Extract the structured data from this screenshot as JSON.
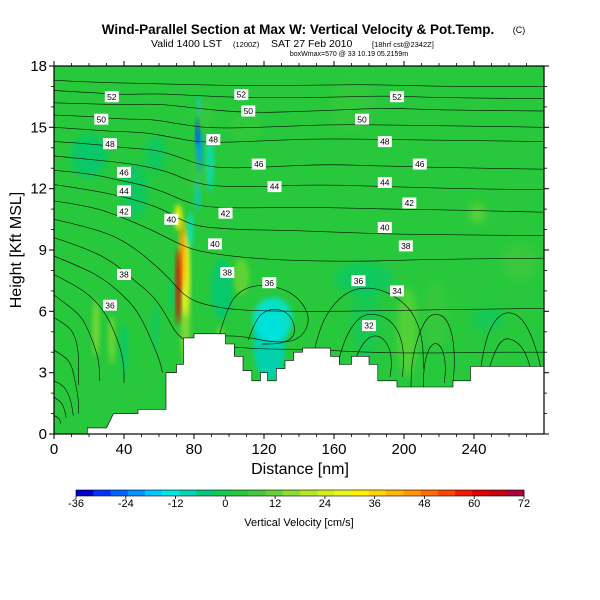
{
  "figure": {
    "title": "Wind-Parallel Section at Max W: Vertical Velocity & Pot.Temp.",
    "copyright": "(C)",
    "subtitle_main": "Valid 1400 LST",
    "subtitle_utc": "(1200Z)",
    "subtitle_date": "SAT 27 Feb 2010",
    "subtitle_fcst": "[18hrf cst@2342Z]",
    "subtitle_extra": "boxWmax=570 @ 33 10.19 05.2159m"
  },
  "chart_data": {
    "type": "heatmap",
    "title": "Wind-Parallel Section at Max W: Vertical Velocity & Pot.Temp.",
    "xlabel": "Distance [nm]",
    "ylabel": "Height [Kft MSL]",
    "xlim": [
      0,
      280
    ],
    "ylim": [
      0,
      18
    ],
    "xticks": [
      0,
      40,
      80,
      120,
      160,
      200,
      240
    ],
    "yticks": [
      0,
      3,
      6,
      9,
      12,
      15,
      18
    ],
    "color_variable": "Vertical Velocity [cm/s]",
    "colorbar_label": "Vertical Velocity [cm/s]",
    "colorbar_range": [
      -36,
      72
    ],
    "colorbar_ticks": [
      -36,
      -24,
      -12,
      0,
      12,
      24,
      36,
      48,
      60,
      72
    ],
    "colorbar_colors": [
      "#0000c8",
      "#0032ff",
      "#0064ff",
      "#0096ff",
      "#00c8ff",
      "#00e6e6",
      "#00d2b4",
      "#00c878",
      "#14c850",
      "#28c83c",
      "#46c83c",
      "#64d23c",
      "#8cdc32",
      "#b4e628",
      "#d2f01e",
      "#ebf51e",
      "#fff000",
      "#ffd200",
      "#ffb400",
      "#ff9600",
      "#ff6e00",
      "#ff4600",
      "#f01e00",
      "#dc0000",
      "#c80014",
      "#aa003c"
    ],
    "contour_variable": "Potential Temperature",
    "contour_labels": [
      {
        "x": 32,
        "y": 6.3,
        "value": "36"
      },
      {
        "x": 40,
        "y": 7.8,
        "value": "38"
      },
      {
        "x": 40,
        "y": 10.9,
        "value": "42"
      },
      {
        "x": 40,
        "y": 11.9,
        "value": "44"
      },
      {
        "x": 40,
        "y": 12.8,
        "value": "46"
      },
      {
        "x": 32,
        "y": 14.2,
        "value": "48"
      },
      {
        "x": 27,
        "y": 15.4,
        "value": "50"
      },
      {
        "x": 33,
        "y": 16.5,
        "value": "52"
      },
      {
        "x": 67,
        "y": 10.5,
        "value": "40"
      },
      {
        "x": 92,
        "y": 9.3,
        "value": "40"
      },
      {
        "x": 99,
        "y": 7.9,
        "value": "38"
      },
      {
        "x": 123,
        "y": 7.4,
        "value": "36"
      },
      {
        "x": 98,
        "y": 10.8,
        "value": "42"
      },
      {
        "x": 126,
        "y": 12.1,
        "value": "44"
      },
      {
        "x": 117,
        "y": 13.2,
        "value": "46"
      },
      {
        "x": 91,
        "y": 14.4,
        "value": "48"
      },
      {
        "x": 111,
        "y": 15.8,
        "value": "50"
      },
      {
        "x": 107,
        "y": 16.6,
        "value": "52"
      },
      {
        "x": 174,
        "y": 7.5,
        "value": "36"
      },
      {
        "x": 196,
        "y": 7.0,
        "value": "34"
      },
      {
        "x": 180,
        "y": 5.3,
        "value": "32"
      },
      {
        "x": 201,
        "y": 9.2,
        "value": "38"
      },
      {
        "x": 189,
        "y": 10.1,
        "value": "40"
      },
      {
        "x": 203,
        "y": 11.3,
        "value": "42"
      },
      {
        "x": 189,
        "y": 12.3,
        "value": "44"
      },
      {
        "x": 209,
        "y": 13.2,
        "value": "46"
      },
      {
        "x": 189,
        "y": 14.3,
        "value": "48"
      },
      {
        "x": 176,
        "y": 15.4,
        "value": "50"
      },
      {
        "x": 196,
        "y": 16.5,
        "value": "52"
      }
    ],
    "terrain_profile": [
      [
        0,
        0
      ],
      [
        19,
        0
      ],
      [
        19,
        0.3
      ],
      [
        30,
        0.3
      ],
      [
        34,
        1.0
      ],
      [
        48,
        1.0
      ],
      [
        48,
        1.2
      ],
      [
        64,
        1.2
      ],
      [
        64,
        3.0
      ],
      [
        70,
        3.0
      ],
      [
        70,
        3.4
      ],
      [
        74,
        3.4
      ],
      [
        74,
        4.7
      ],
      [
        80,
        4.7
      ],
      [
        80,
        4.9
      ],
      [
        98,
        4.9
      ],
      [
        98,
        4.4
      ],
      [
        103,
        4.4
      ],
      [
        103,
        3.8
      ],
      [
        108,
        3.8
      ],
      [
        108,
        3.1
      ],
      [
        113,
        3.1
      ],
      [
        113,
        2.6
      ],
      [
        118,
        2.6
      ],
      [
        118,
        3.0
      ],
      [
        122,
        3.0
      ],
      [
        122,
        2.6
      ],
      [
        127,
        2.6
      ],
      [
        127,
        3.2
      ],
      [
        132,
        3.2
      ],
      [
        132,
        3.6
      ],
      [
        137,
        3.6
      ],
      [
        137,
        4.0
      ],
      [
        142,
        4.0
      ],
      [
        142,
        4.2
      ],
      [
        158,
        4.2
      ],
      [
        158,
        3.8
      ],
      [
        163,
        3.8
      ],
      [
        163,
        3.4
      ],
      [
        170,
        3.4
      ],
      [
        170,
        3.8
      ],
      [
        180,
        3.8
      ],
      [
        180,
        3.4
      ],
      [
        185,
        3.4
      ],
      [
        185,
        2.6
      ],
      [
        196,
        2.6
      ],
      [
        196,
        2.3
      ],
      [
        228,
        2.3
      ],
      [
        228,
        2.6
      ],
      [
        238,
        2.6
      ],
      [
        238,
        3.3
      ],
      [
        280,
        3.3
      ],
      [
        280,
        0
      ],
      [
        0,
        0
      ]
    ]
  }
}
